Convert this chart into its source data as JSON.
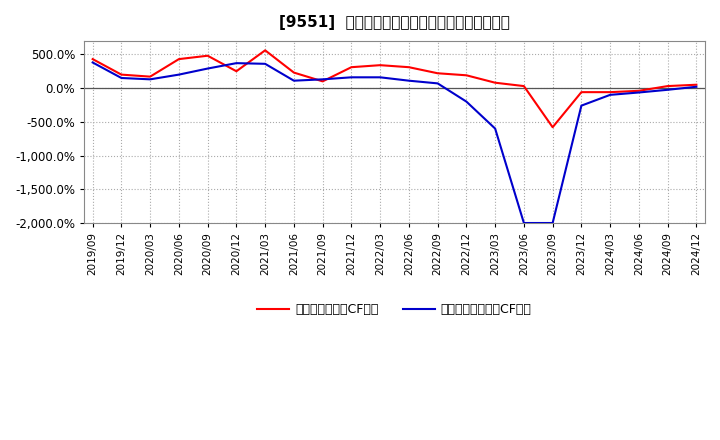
{
  "title": "[9551]  有利子負債キャッシュフロー比率の推移",
  "ylim": [
    -2000,
    700
  ],
  "yticks": [
    -2000,
    -1500,
    -1000,
    -500,
    0,
    500
  ],
  "background_color": "#ffffff",
  "plot_bg_color": "#ffffff",
  "grid_color": "#aaaaaa",
  "legend_label_red": "有利子負債営業CF比率",
  "legend_label_blue": "有利子負債フリーCF比率",
  "line_color_red": "#ff0000",
  "line_color_blue": "#0000cc",
  "x_labels": [
    "2019/09",
    "2019/12",
    "2020/03",
    "2020/06",
    "2020/09",
    "2020/12",
    "2021/03",
    "2021/06",
    "2021/09",
    "2021/12",
    "2022/03",
    "2022/06",
    "2022/09",
    "2022/12",
    "2023/03",
    "2023/06",
    "2023/09",
    "2023/12",
    "2024/03",
    "2024/06",
    "2024/09",
    "2024/12"
  ],
  "red_values": [
    430,
    200,
    170,
    430,
    480,
    250,
    560,
    230,
    100,
    310,
    340,
    310,
    220,
    190,
    80,
    30,
    -580,
    -60,
    -60,
    -40,
    30,
    50
  ],
  "blue_values": [
    380,
    150,
    130,
    200,
    290,
    370,
    360,
    110,
    130,
    160,
    160,
    110,
    70,
    -200,
    -600,
    -2000,
    -2000,
    -260,
    -100,
    -65,
    -25,
    20
  ]
}
